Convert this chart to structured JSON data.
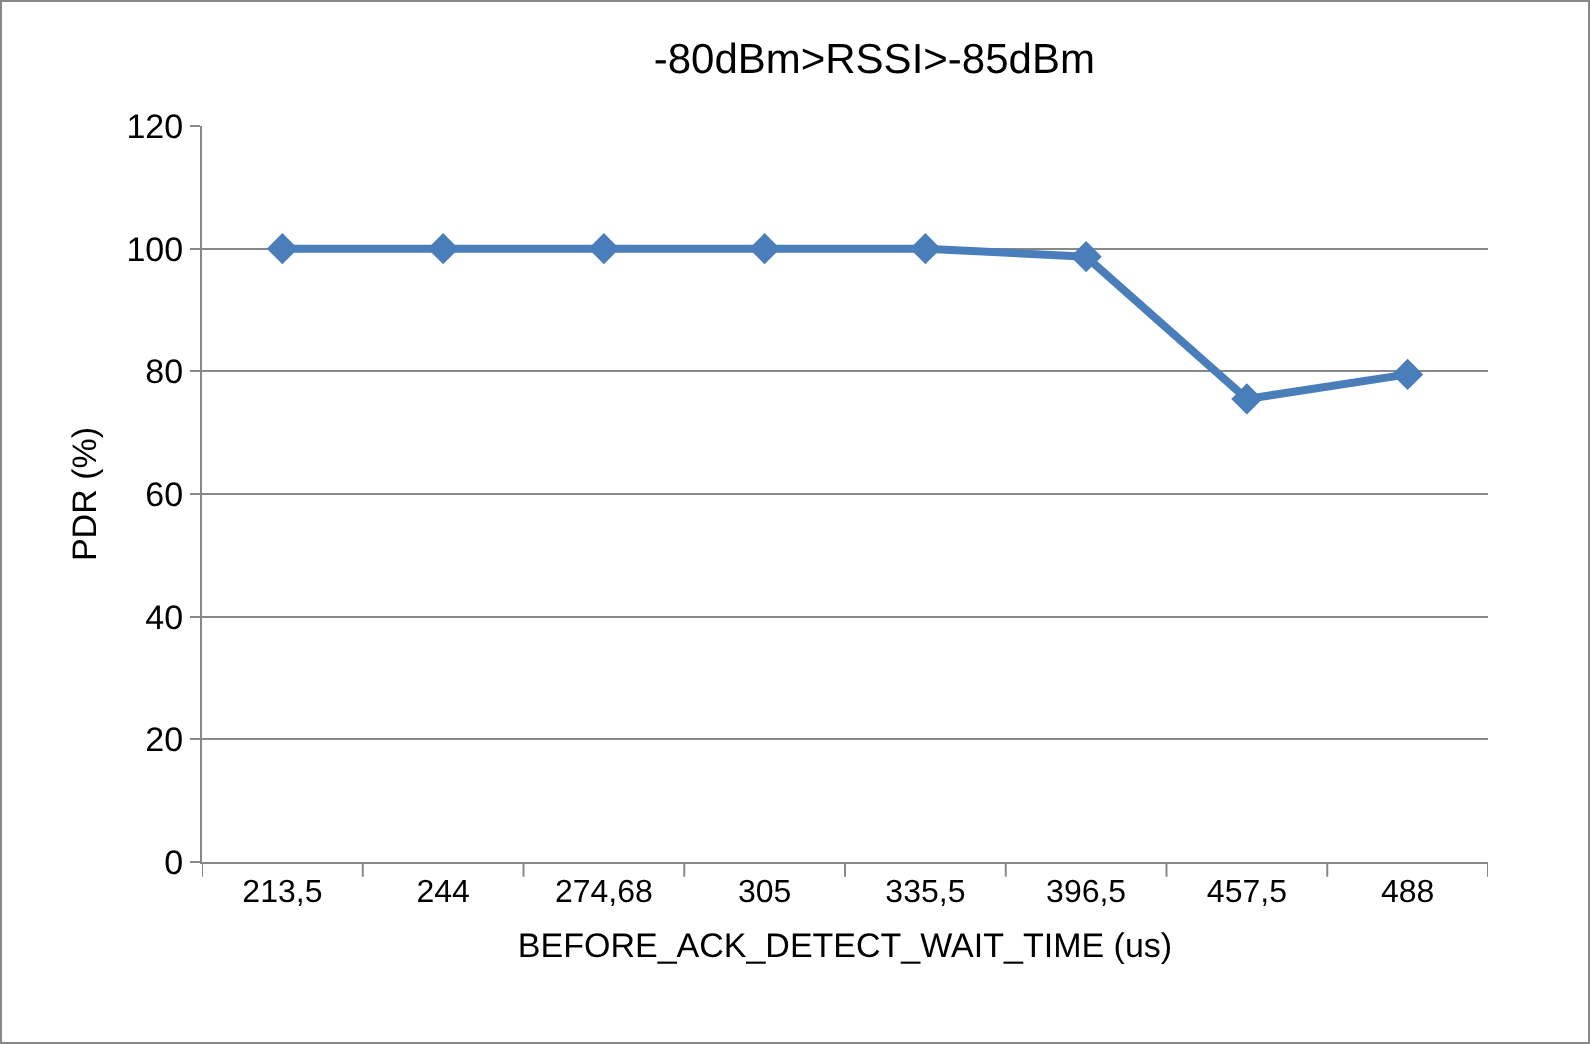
{
  "chart_data": {
    "type": "line",
    "title": "-80dBm>RSSI>-85dBm",
    "xlabel": "BEFORE_ACK_DETECT_WAIT_TIME (us)",
    "ylabel": "PDR (%)",
    "categories": [
      "213,5",
      "244",
      "274,68",
      "305",
      "335,5",
      "396,5",
      "457,5",
      "488"
    ],
    "series": [
      {
        "color": "#4a7ebb",
        "values": [
          100,
          100,
          100,
          100,
          100,
          98.7,
          75.5,
          79.5
        ]
      }
    ],
    "ylim": [
      0,
      120
    ],
    "yticks": [
      0,
      20,
      40,
      60,
      80,
      100,
      120
    ],
    "grid": "y",
    "legend": false,
    "marker": "diamond",
    "line_style": "solid"
  }
}
